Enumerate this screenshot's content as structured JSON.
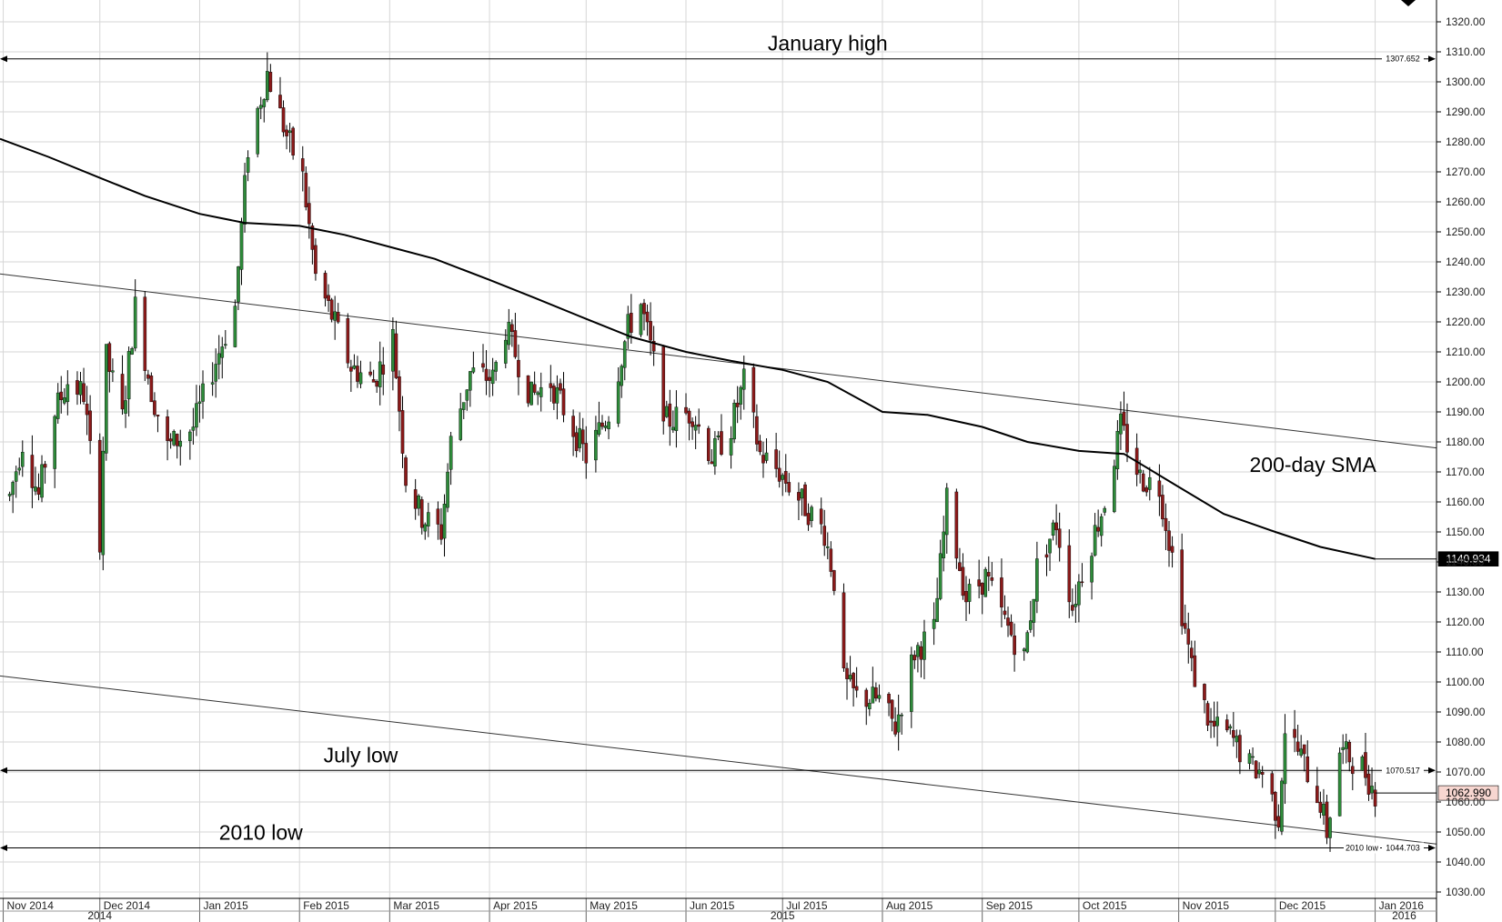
{
  "chart_data": {
    "type": "candlestick",
    "instrument_hint": "",
    "y_axis": {
      "min": 1030,
      "max": 1320,
      "ticks": [
        "1320.00",
        "1310.00",
        "1300.00",
        "1290.00",
        "1280.00",
        "1270.00",
        "1260.00",
        "1250.00",
        "1240.00",
        "1230.00",
        "1220.00",
        "1210.00",
        "1200.00",
        "1190.00",
        "1180.00",
        "1170.00",
        "1160.00",
        "1150.00",
        "1140.00",
        "1130.00",
        "1120.00",
        "1110.00",
        "1100.00",
        "1090.00",
        "1080.00",
        "1070.00",
        "1060.00",
        "1050.00",
        "1040.00",
        "1030.00"
      ]
    },
    "x_axis": {
      "start": "2014-10-31",
      "end": "2016-01-20",
      "month_labels": [
        {
          "date": "2014-11-01",
          "label": "Nov 2014"
        },
        {
          "date": "2014-12-01",
          "label": "Dec 2014"
        },
        {
          "date": "2015-01-01",
          "label": "Jan 2015"
        },
        {
          "date": "2015-02-01",
          "label": "Feb 2015"
        },
        {
          "date": "2015-03-01",
          "label": "Mar 2015"
        },
        {
          "date": "2015-04-01",
          "label": "Apr 2015"
        },
        {
          "date": "2015-05-01",
          "label": "May 2015"
        },
        {
          "date": "2015-06-01",
          "label": "Jun 2015"
        },
        {
          "date": "2015-07-01",
          "label": "Jul 2015"
        },
        {
          "date": "2015-08-01",
          "label": "Aug 2015"
        },
        {
          "date": "2015-09-01",
          "label": "Sep 2015"
        },
        {
          "date": "2015-10-01",
          "label": "Oct 2015"
        },
        {
          "date": "2015-11-01",
          "label": "Nov 2015"
        },
        {
          "date": "2015-12-01",
          "label": "Dec 2015"
        },
        {
          "date": "2016-01-01",
          "label": "Jan 2016"
        }
      ],
      "year_labels": [
        {
          "date": "2014-12-01",
          "label": "2014"
        },
        {
          "date": "2015-07-01",
          "label": "2015"
        },
        {
          "date": "2016-01-10",
          "label": "2016"
        }
      ]
    },
    "grid": true,
    "price_anchors": [
      {
        "date": "2014-11-03",
        "price": 1162
      },
      {
        "date": "2014-11-07",
        "price": 1180
      },
      {
        "date": "2014-11-12",
        "price": 1162
      },
      {
        "date": "2014-11-17",
        "price": 1190
      },
      {
        "date": "2014-11-21",
        "price": 1200
      },
      {
        "date": "2014-11-26",
        "price": 1196
      },
      {
        "date": "2014-12-01",
        "price": 1148
      },
      {
        "date": "2014-12-03",
        "price": 1208
      },
      {
        "date": "2014-12-08",
        "price": 1188
      },
      {
        "date": "2014-12-12",
        "price": 1225
      },
      {
        "date": "2014-12-17",
        "price": 1197
      },
      {
        "date": "2014-12-22",
        "price": 1178
      },
      {
        "date": "2014-12-30",
        "price": 1185
      },
      {
        "date": "2015-01-05",
        "price": 1204
      },
      {
        "date": "2015-01-12",
        "price": 1225
      },
      {
        "date": "2015-01-16",
        "price": 1278
      },
      {
        "date": "2015-01-22",
        "price": 1303
      },
      {
        "date": "2015-01-28",
        "price": 1282
      },
      {
        "date": "2015-02-02",
        "price": 1268
      },
      {
        "date": "2015-02-06",
        "price": 1235
      },
      {
        "date": "2015-02-11",
        "price": 1222
      },
      {
        "date": "2015-02-17",
        "price": 1205
      },
      {
        "date": "2015-02-24",
        "price": 1200
      },
      {
        "date": "2015-03-02",
        "price": 1215
      },
      {
        "date": "2015-03-06",
        "price": 1168
      },
      {
        "date": "2015-03-11",
        "price": 1155
      },
      {
        "date": "2015-03-17",
        "price": 1150
      },
      {
        "date": "2015-03-20",
        "price": 1180
      },
      {
        "date": "2015-03-26",
        "price": 1203
      },
      {
        "date": "2015-04-02",
        "price": 1201
      },
      {
        "date": "2015-04-06",
        "price": 1218
      },
      {
        "date": "2015-04-14",
        "price": 1195
      },
      {
        "date": "2015-04-20",
        "price": 1200
      },
      {
        "date": "2015-04-28",
        "price": 1182
      },
      {
        "date": "2015-05-01",
        "price": 1175
      },
      {
        "date": "2015-05-08",
        "price": 1190
      },
      {
        "date": "2015-05-14",
        "price": 1218
      },
      {
        "date": "2015-05-18",
        "price": 1226
      },
      {
        "date": "2015-05-26",
        "price": 1187
      },
      {
        "date": "2015-06-03",
        "price": 1190
      },
      {
        "date": "2015-06-09",
        "price": 1175
      },
      {
        "date": "2015-06-15",
        "price": 1185
      },
      {
        "date": "2015-06-19",
        "price": 1200
      },
      {
        "date": "2015-06-24",
        "price": 1176
      },
      {
        "date": "2015-06-30",
        "price": 1170
      },
      {
        "date": "2015-07-07",
        "price": 1160
      },
      {
        "date": "2015-07-14",
        "price": 1150
      },
      {
        "date": "2015-07-17",
        "price": 1134
      },
      {
        "date": "2015-07-20",
        "price": 1100
      },
      {
        "date": "2015-07-24",
        "price": 1095
      },
      {
        "date": "2015-07-31",
        "price": 1094
      },
      {
        "date": "2015-08-05",
        "price": 1085
      },
      {
        "date": "2015-08-11",
        "price": 1110
      },
      {
        "date": "2015-08-17",
        "price": 1117
      },
      {
        "date": "2015-08-21",
        "price": 1160
      },
      {
        "date": "2015-08-27",
        "price": 1128
      },
      {
        "date": "2015-09-02",
        "price": 1135
      },
      {
        "date": "2015-09-08",
        "price": 1120
      },
      {
        "date": "2015-09-14",
        "price": 1108
      },
      {
        "date": "2015-09-18",
        "price": 1138
      },
      {
        "date": "2015-09-24",
        "price": 1153
      },
      {
        "date": "2015-09-29",
        "price": 1125
      },
      {
        "date": "2015-10-02",
        "price": 1137
      },
      {
        "date": "2015-10-09",
        "price": 1160
      },
      {
        "date": "2015-10-14",
        "price": 1185
      },
      {
        "date": "2015-10-20",
        "price": 1168
      },
      {
        "date": "2015-10-26",
        "price": 1165
      },
      {
        "date": "2015-10-30",
        "price": 1142
      },
      {
        "date": "2015-11-05",
        "price": 1105
      },
      {
        "date": "2015-11-11",
        "price": 1085
      },
      {
        "date": "2015-11-17",
        "price": 1082
      },
      {
        "date": "2015-11-23",
        "price": 1072
      },
      {
        "date": "2015-11-27",
        "price": 1070
      },
      {
        "date": "2015-12-02",
        "price": 1055
      },
      {
        "date": "2015-12-04",
        "price": 1085
      },
      {
        "date": "2015-12-09",
        "price": 1075
      },
      {
        "date": "2015-12-15",
        "price": 1060
      },
      {
        "date": "2015-12-17",
        "price": 1050
      },
      {
        "date": "2015-12-21",
        "price": 1077
      },
      {
        "date": "2015-12-28",
        "price": 1072
      },
      {
        "date": "2016-01-01",
        "price": 1063
      }
    ],
    "sma_200": {
      "label": "200-day SMA",
      "points": [
        {
          "date": "2014-10-31",
          "price": 1281
        },
        {
          "date": "2014-11-15",
          "price": 1275
        },
        {
          "date": "2014-12-01",
          "price": 1268
        },
        {
          "date": "2014-12-15",
          "price": 1262
        },
        {
          "date": "2015-01-01",
          "price": 1256
        },
        {
          "date": "2015-01-15",
          "price": 1253
        },
        {
          "date": "2015-02-01",
          "price": 1252
        },
        {
          "date": "2015-02-15",
          "price": 1249
        },
        {
          "date": "2015-03-01",
          "price": 1245
        },
        {
          "date": "2015-03-15",
          "price": 1241
        },
        {
          "date": "2015-04-01",
          "price": 1234
        },
        {
          "date": "2015-04-15",
          "price": 1228
        },
        {
          "date": "2015-05-01",
          "price": 1221
        },
        {
          "date": "2015-05-15",
          "price": 1215
        },
        {
          "date": "2015-06-01",
          "price": 1210
        },
        {
          "date": "2015-06-15",
          "price": 1207
        },
        {
          "date": "2015-07-01",
          "price": 1204
        },
        {
          "date": "2015-07-15",
          "price": 1200
        },
        {
          "date": "2015-08-01",
          "price": 1190
        },
        {
          "date": "2015-08-15",
          "price": 1189
        },
        {
          "date": "2015-09-01",
          "price": 1185
        },
        {
          "date": "2015-09-15",
          "price": 1180
        },
        {
          "date": "2015-10-01",
          "price": 1177
        },
        {
          "date": "2015-10-15",
          "price": 1176
        },
        {
          "date": "2015-11-01",
          "price": 1165
        },
        {
          "date": "2015-11-15",
          "price": 1156
        },
        {
          "date": "2015-12-01",
          "price": 1150
        },
        {
          "date": "2015-12-15",
          "price": 1145
        },
        {
          "date": "2016-01-01",
          "price": 1141
        }
      ]
    },
    "trendlines": [
      {
        "name": "upper-channel-line",
        "start": {
          "date": "2014-10-31",
          "price": 1236
        },
        "end": {
          "date": "2016-01-20",
          "price": 1178
        }
      },
      {
        "name": "lower-channel-line",
        "start": {
          "date": "2014-10-31",
          "price": 1102
        },
        "end": {
          "date": "2016-01-20",
          "price": 1046
        }
      }
    ],
    "horizontal_levels": [
      {
        "name": "january-high-line",
        "price": 1307.652,
        "label": "January high",
        "value_label": "1307.652",
        "label_date": "2015-07-15",
        "side_label": ""
      },
      {
        "name": "july-low-line",
        "price": 1070.517,
        "label": "July low",
        "value_label": "1070.517",
        "label_date": "2015-02-20",
        "side_label": ""
      },
      {
        "name": "2010-low-line",
        "price": 1044.703,
        "label": "2010 low",
        "value_label": "1044.703",
        "label_date": "2015-01-20",
        "side_label": "2010 low"
      }
    ],
    "annotations": [
      {
        "name": "sma-label",
        "text": "200-day SMA",
        "date": "2015-11-23",
        "price": 1170
      }
    ],
    "price_tags": [
      {
        "name": "sma-price-tag",
        "value": "1140.934",
        "price": 1141,
        "bg": "#000000",
        "fg": "#ffffff"
      },
      {
        "name": "last-price-tag",
        "value": "1062.990",
        "price": 1063,
        "bg": "#f7d6d0",
        "fg": "#000000"
      }
    ],
    "colors": {
      "bullish": "#2e8b3a",
      "bearish": "#8b1a1a",
      "wick": "#000000",
      "grid": "#d6d6d6",
      "axis": "#000000"
    }
  }
}
